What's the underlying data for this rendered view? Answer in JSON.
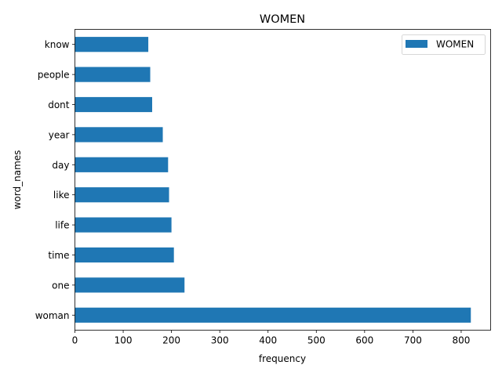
{
  "chart_data": {
    "type": "bar",
    "orientation": "horizontal",
    "title": "WOMEN",
    "xlabel": "frequency",
    "ylabel": "word_names",
    "categories": [
      "woman",
      "one",
      "time",
      "life",
      "like",
      "day",
      "year",
      "dont",
      "people",
      "know"
    ],
    "series": [
      {
        "name": "WOMEN",
        "values": [
          820,
          227,
          205,
          200,
          195,
          193,
          182,
          160,
          156,
          152
        ],
        "color": "#1f77b4"
      }
    ],
    "xlim": [
      0,
      861
    ],
    "xticks": [
      0,
      100,
      200,
      300,
      400,
      500,
      600,
      700,
      800
    ],
    "grid": false,
    "legend_position": "top-right"
  }
}
